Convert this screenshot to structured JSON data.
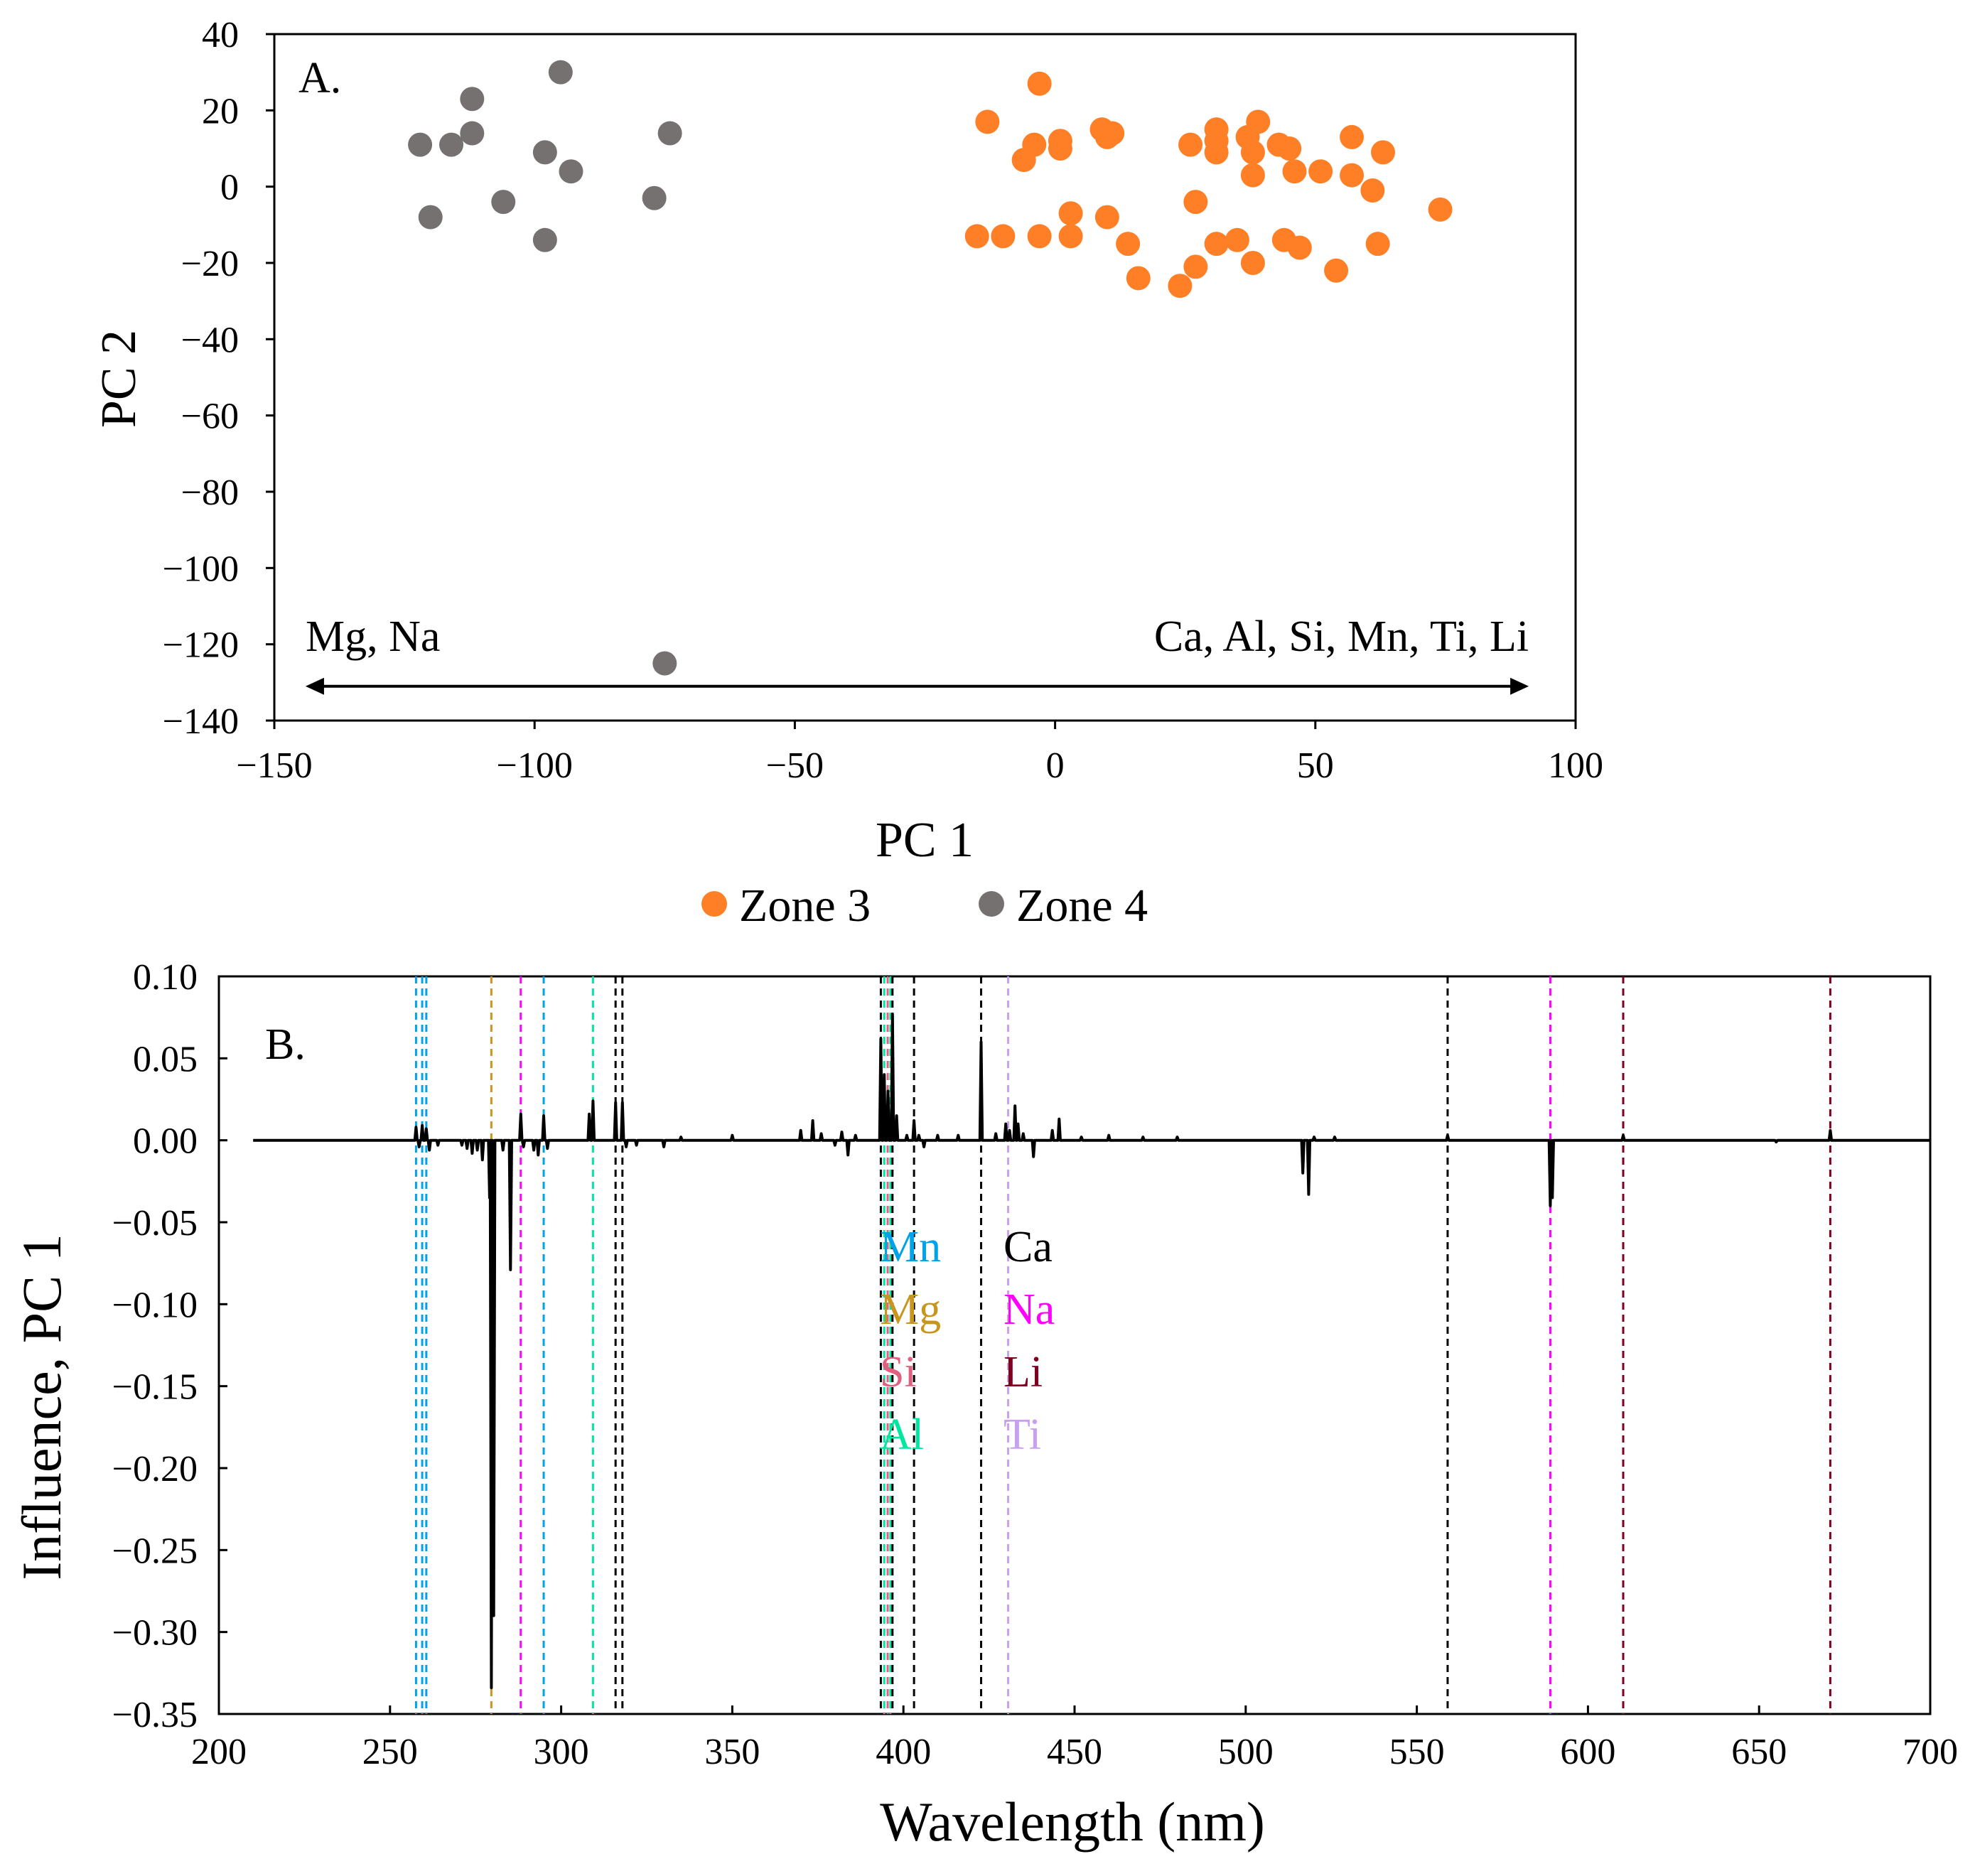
{
  "colors": {
    "zone3": "#FF7F27",
    "zone4": "#767171",
    "axis": "#888888",
    "spectrum": "#000000",
    "Mn": "#00A2E8",
    "Ca": "#000000",
    "Mg": "#C8961E",
    "Na": "#FF00FF",
    "Si": "#E06080",
    "Li": "#800020",
    "Al": "#00E8A0",
    "Ti": "#C8A0F0"
  },
  "chart_data": [
    {
      "type": "scatter",
      "panel_label": "A.",
      "xlabel": "PC 1",
      "ylabel": "PC 2",
      "xlim": [
        -150,
        100
      ],
      "ylim": [
        -140,
        40
      ],
      "xticks": [
        -150,
        -100,
        -50,
        0,
        50,
        100
      ],
      "yticks": [
        40,
        20,
        0,
        -20,
        -40,
        -60,
        -80,
        -100,
        -120,
        -140
      ],
      "xtick_labels": [
        "−150",
        "−100",
        "−50",
        "0",
        "50",
        "100"
      ],
      "ytick_labels": [
        "40",
        "20",
        "0",
        "−20",
        "−40",
        "−60",
        "−80",
        "−100",
        "−120",
        "−140"
      ],
      "arrow": {
        "from": -144,
        "to": 91,
        "y": -131
      },
      "annotations": [
        {
          "text": "Mg, Na",
          "x": -144,
          "y": -118,
          "anchor": "start"
        },
        {
          "text": "Ca, Al, Si, Mn, Ti, Li",
          "x": 91,
          "y": -118,
          "anchor": "end"
        }
      ],
      "legend": [
        {
          "name": "Zone 3",
          "color_key": "zone3"
        },
        {
          "name": "Zone 4",
          "color_key": "zone4"
        }
      ],
      "series": [
        {
          "name": "Zone 3",
          "color_key": "zone3",
          "points": [
            [
              -13,
              17
            ],
            [
              -3,
              27
            ],
            [
              -6,
              7
            ],
            [
              -4,
              11
            ],
            [
              1,
              12
            ],
            [
              1,
              10
            ],
            [
              3,
              -7
            ],
            [
              9,
              15
            ],
            [
              10,
              13
            ],
            [
              11,
              14
            ],
            [
              10,
              -8
            ],
            [
              26,
              11
            ],
            [
              27,
              -4
            ],
            [
              31,
              15
            ],
            [
              31,
              9
            ],
            [
              31,
              12
            ],
            [
              37,
              13
            ],
            [
              38,
              9
            ],
            [
              38,
              3
            ],
            [
              39,
              17
            ],
            [
              43,
              11
            ],
            [
              45,
              10
            ],
            [
              46,
              4
            ],
            [
              51,
              4
            ],
            [
              57,
              13
            ],
            [
              57,
              3
            ],
            [
              61,
              -1
            ],
            [
              63,
              9
            ],
            [
              74,
              -6
            ],
            [
              -15,
              -13
            ],
            [
              -10,
              -13
            ],
            [
              -3,
              -13
            ],
            [
              3,
              -13
            ],
            [
              14,
              -15
            ],
            [
              16,
              -24
            ],
            [
              27,
              -21
            ],
            [
              24,
              -26
            ],
            [
              31,
              -15
            ],
            [
              35,
              -14
            ],
            [
              38,
              -20
            ],
            [
              44,
              -14
            ],
            [
              47,
              -16
            ],
            [
              54,
              -22
            ],
            [
              62,
              -15
            ]
          ]
        },
        {
          "name": "Zone 4",
          "color_key": "zone4",
          "points": [
            [
              -95,
              30
            ],
            [
              -112,
              23
            ],
            [
              -122,
              11
            ],
            [
              -116,
              11
            ],
            [
              -112,
              14
            ],
            [
              -120,
              -8
            ],
            [
              -106,
              -4
            ],
            [
              -98,
              9
            ],
            [
              -93,
              4
            ],
            [
              -98,
              -14
            ],
            [
              -74,
              14
            ],
            [
              -77,
              -3
            ],
            [
              -75,
              -125
            ]
          ]
        }
      ]
    },
    {
      "type": "line",
      "panel_label": "B.",
      "xlabel": "Wavelength (nm)",
      "ylabel": "Influence, PC 1",
      "xlim": [
        200,
        700
      ],
      "ylim": [
        -0.35,
        0.1
      ],
      "xticks": [
        200,
        250,
        300,
        350,
        400,
        450,
        500,
        550,
        600,
        650,
        700
      ],
      "yticks": [
        0.1,
        0.05,
        0,
        -0.05,
        -0.1,
        -0.15,
        -0.2,
        -0.25,
        -0.3,
        -0.35
      ],
      "xtick_labels": [
        "200",
        "250",
        "300",
        "350",
        "400",
        "450",
        "500",
        "550",
        "600",
        "650",
        "700"
      ],
      "ytick_labels": [
        "0.10",
        "0.05",
        "0.00",
        "−0.05",
        "−0.10",
        "−0.15",
        "−0.20",
        "−0.25",
        "−0.30",
        "−0.35"
      ],
      "spectrum_range": [
        210,
        700
      ],
      "peaks": [
        [
          257.6,
          0.008
        ],
        [
          258.5,
          -0.004
        ],
        [
          259.4,
          0.009
        ],
        [
          260.6,
          0.007
        ],
        [
          261.5,
          -0.006
        ],
        [
          264,
          -0.003
        ],
        [
          271,
          -0.003
        ],
        [
          272.5,
          -0.005
        ],
        [
          274,
          -0.008
        ],
        [
          275.5,
          -0.006
        ],
        [
          277,
          -0.012
        ],
        [
          279.6,
          -0.334
        ],
        [
          280.3,
          -0.29
        ],
        [
          279.1,
          -0.035
        ],
        [
          285.2,
          -0.079
        ],
        [
          283,
          -0.006
        ],
        [
          288.2,
          0.016
        ],
        [
          289,
          -0.004
        ],
        [
          292,
          -0.006
        ],
        [
          293.3,
          -0.009
        ],
        [
          294.9,
          0.015
        ],
        [
          296,
          -0.005
        ],
        [
          308.2,
          0.016
        ],
        [
          309.3,
          0.024
        ],
        [
          315.9,
          0.023
        ],
        [
          317.9,
          0.023
        ],
        [
          319,
          -0.004
        ],
        [
          322,
          -0.003
        ],
        [
          330,
          -0.004
        ],
        [
          335,
          0.002
        ],
        [
          350,
          0.003
        ],
        [
          370,
          0.006
        ],
        [
          373.5,
          0.012
        ],
        [
          376,
          0.004
        ],
        [
          380,
          -0.003
        ],
        [
          382,
          0.005
        ],
        [
          383.8,
          -0.009
        ],
        [
          386,
          0.003
        ],
        [
          393.4,
          0.062
        ],
        [
          394.4,
          0.04
        ],
        [
          395.5,
          0.03
        ],
        [
          396.8,
          0.077
        ],
        [
          398,
          0.015
        ],
        [
          401,
          0.003
        ],
        [
          403.1,
          0.012
        ],
        [
          404.5,
          0.003
        ],
        [
          406,
          -0.004
        ],
        [
          410,
          0.003
        ],
        [
          416,
          0.003
        ],
        [
          422.7,
          0.06
        ],
        [
          427,
          0.004
        ],
        [
          429.9,
          0.01
        ],
        [
          431,
          0.006
        ],
        [
          432.6,
          0.021
        ],
        [
          433.5,
          0.01
        ],
        [
          435,
          0.004
        ],
        [
          438,
          -0.01
        ],
        [
          443.5,
          0.006
        ],
        [
          445.5,
          0.013
        ],
        [
          452,
          0.002
        ],
        [
          460,
          0.003
        ],
        [
          470,
          0.002
        ],
        [
          480,
          0.002
        ],
        [
          516.7,
          -0.02
        ],
        [
          518.4,
          -0.033
        ],
        [
          520,
          0.002
        ],
        [
          526,
          0.002
        ],
        [
          559,
          0.003
        ],
        [
          589,
          -0.04
        ],
        [
          589.6,
          -0.035
        ],
        [
          610.3,
          0.003
        ],
        [
          655,
          -0.001
        ],
        [
          670.8,
          0.006
        ]
      ],
      "element_lines": [
        {
          "element": "Mn",
          "wavelengths": [
            257.6,
            259.4,
            260.6,
            294.9
          ]
        },
        {
          "element": "Mg",
          "wavelengths": [
            279.6
          ]
        },
        {
          "element": "Na",
          "wavelengths": [
            288.2,
            589
          ]
        },
        {
          "element": "Al",
          "wavelengths": [
            309.3,
            394.4,
            396.2
          ]
        },
        {
          "element": "Ca",
          "wavelengths": [
            315.9,
            317.9,
            393.4,
            396.8,
            403.1,
            422.7,
            559.0
          ]
        },
        {
          "element": "Si",
          "wavelengths": [
            395.4
          ]
        },
        {
          "element": "Ti",
          "wavelengths": [
            430.6
          ]
        },
        {
          "element": "Li",
          "wavelengths": [
            610.3,
            670.8
          ]
        }
      ],
      "element_legend": [
        {
          "text": "Mn",
          "color_key": "Mn"
        },
        {
          "text": "Ca",
          "color_key": "Ca"
        },
        {
          "text": "Mg",
          "color_key": "Mg"
        },
        {
          "text": "Na",
          "color_key": "Na"
        },
        {
          "text": "Si",
          "color_key": "Si"
        },
        {
          "text": "Li",
          "color_key": "Li"
        },
        {
          "text": "Al",
          "color_key": "Al"
        },
        {
          "text": "Ti",
          "color_key": "Ti"
        }
      ]
    }
  ]
}
